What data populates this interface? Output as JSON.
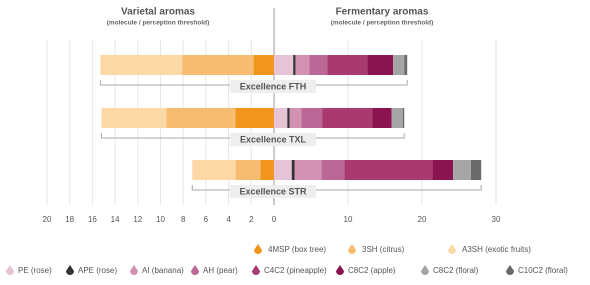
{
  "chart_data": {
    "type": "diverging-bar",
    "left_title": "Varietal aromas",
    "left_subtitle": "(molecule / perception threshold)",
    "right_title": "Fermentary aromas",
    "right_subtitle": "(molecule / perception threshold)",
    "categories": [
      "Excellence FTH",
      "Excellence TXL",
      "Excellence STR"
    ],
    "xlim": [
      0,
      20
    ],
    "xticks": [
      20,
      18,
      16,
      14,
      12,
      10,
      8,
      6,
      4,
      2,
      0
    ],
    "x2lim": [
      0,
      30
    ],
    "x2ticks": [
      0,
      10,
      20,
      30
    ],
    "grid": true,
    "series": [
      {
        "name": "4MSP (box tree)",
        "color": "#f0961e",
        "side": "left",
        "values": [
          1.8,
          3.4,
          1.2
        ]
      },
      {
        "name": "3SH (citrus)",
        "color": "#f6bd72",
        "side": "left",
        "values": [
          6.3,
          6.1,
          2.2
        ]
      },
      {
        "name": "A3SH (exotic fruits)",
        "color": "#fbd8a5",
        "side": "left",
        "values": [
          7.2,
          5.7,
          3.8
        ]
      },
      {
        "name": "PE (rose)",
        "color": "#e6c3d5",
        "side": "right",
        "values": [
          2.6,
          1.8,
          2.4
        ]
      },
      {
        "name": "APE (rose)",
        "color": "#333333",
        "side": "right",
        "values": [
          0.3,
          0.3,
          0.4
        ]
      },
      {
        "name": "AI (banana)",
        "color": "#d391b3",
        "side": "right",
        "values": [
          1.9,
          1.6,
          3.6
        ]
      },
      {
        "name": "AH (pear)",
        "color": "#bb6896",
        "side": "right",
        "values": [
          2.4,
          2.8,
          3.1
        ]
      },
      {
        "name": "C4C2 (pineapple)",
        "color": "#a83a70",
        "side": "right",
        "values": [
          5.4,
          6.8,
          11.9
        ]
      },
      {
        "name": "C8C2 (apple)",
        "color": "#8a1450",
        "side": "right",
        "values": [
          3.5,
          2.6,
          2.8
        ]
      },
      {
        "name": "C8C2 (floral)",
        "color": "#a5a5a5",
        "side": "right",
        "values": [
          1.5,
          1.5,
          2.4
        ]
      },
      {
        "name": "C10C2 (floral)",
        "color": "#6a6a6a",
        "side": "right",
        "values": [
          0.4,
          0.2,
          1.4
        ]
      }
    ]
  }
}
